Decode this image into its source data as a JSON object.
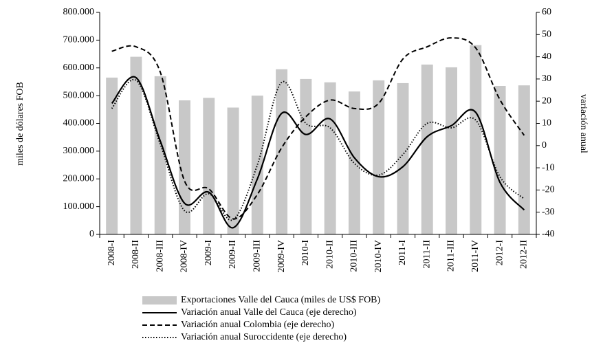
{
  "chart_data": {
    "type": "bar-line",
    "categories": [
      "2008-I",
      "2008-II",
      "2008-III",
      "2008-IV",
      "2009-I",
      "2009-II",
      "2009-III",
      "2009-IV",
      "2010-I",
      "2010-II",
      "2010-III",
      "2010-IV",
      "2011-I",
      "2011-II",
      "2011-III",
      "2011-IV",
      "2012-I",
      "2012-II"
    ],
    "series": [
      {
        "name": "Exportaciones Valle del Cauca (miles de US$ FOB)",
        "kind": "bar",
        "color": "#c8c8c8",
        "values": [
          565000,
          640000,
          570000,
          483000,
          492000,
          457000,
          500000,
          595000,
          560000,
          548000,
          515000,
          555000,
          545000,
          612000,
          602000,
          682000,
          535000,
          537000
        ]
      },
      {
        "name": "Variación anual Valle del Cauca (eje derecho)",
        "kind": "line",
        "dash": "solid",
        "color": "#000000",
        "axis": "y2",
        "values": [
          19,
          30.6,
          2,
          -26,
          -21,
          -37,
          -15,
          14.5,
          5,
          12,
          -5.5,
          -14,
          -9.5,
          4,
          9,
          15,
          -16.5,
          -29
        ]
      },
      {
        "name": "Variación anual Colombia (eje derecho)",
        "kind": "line",
        "dash": "dashed",
        "color": "#000000",
        "axis": "y2",
        "values": [
          42.5,
          44.5,
          33,
          -16,
          -19.5,
          -33,
          -22,
          -1,
          13,
          20.5,
          16.7,
          19,
          39,
          44.5,
          48.5,
          44,
          20.7,
          4.6
        ]
      },
      {
        "name": "Variación anual Suroccidente (eje derecho)",
        "kind": "line",
        "dash": "dotted",
        "color": "#000000",
        "axis": "y2",
        "values": [
          16.7,
          29.4,
          0.6,
          -29.4,
          -21.7,
          -33.4,
          -8.7,
          28.5,
          10,
          8,
          -8,
          -13.3,
          -4,
          10,
          8,
          11.5,
          -14,
          -24
        ]
      }
    ],
    "ylabel": "miles de dólares FOB",
    "y2label": "variación anual",
    "ylim": [
      0,
      800000
    ],
    "yticks": [
      0,
      {
        "value": 100000,
        "label": "100.000"
      },
      {
        "value": 200000,
        "label": "200.000"
      },
      {
        "value": 300000,
        "label": "300.000"
      },
      {
        "value": 400000,
        "label": "400.000"
      },
      {
        "value": 500000,
        "label": "500.000"
      },
      {
        "value": 600000,
        "label": "600.000"
      },
      {
        "value": 700000,
        "label": "700.000"
      },
      {
        "value": 800000,
        "label": "800.000"
      }
    ],
    "y2lim": [
      -40,
      60
    ],
    "y2ticks": [
      -40,
      -30,
      -20,
      -10,
      0,
      10,
      20,
      30,
      40,
      50,
      60
    ],
    "grid": false,
    "legend": "bottom"
  }
}
